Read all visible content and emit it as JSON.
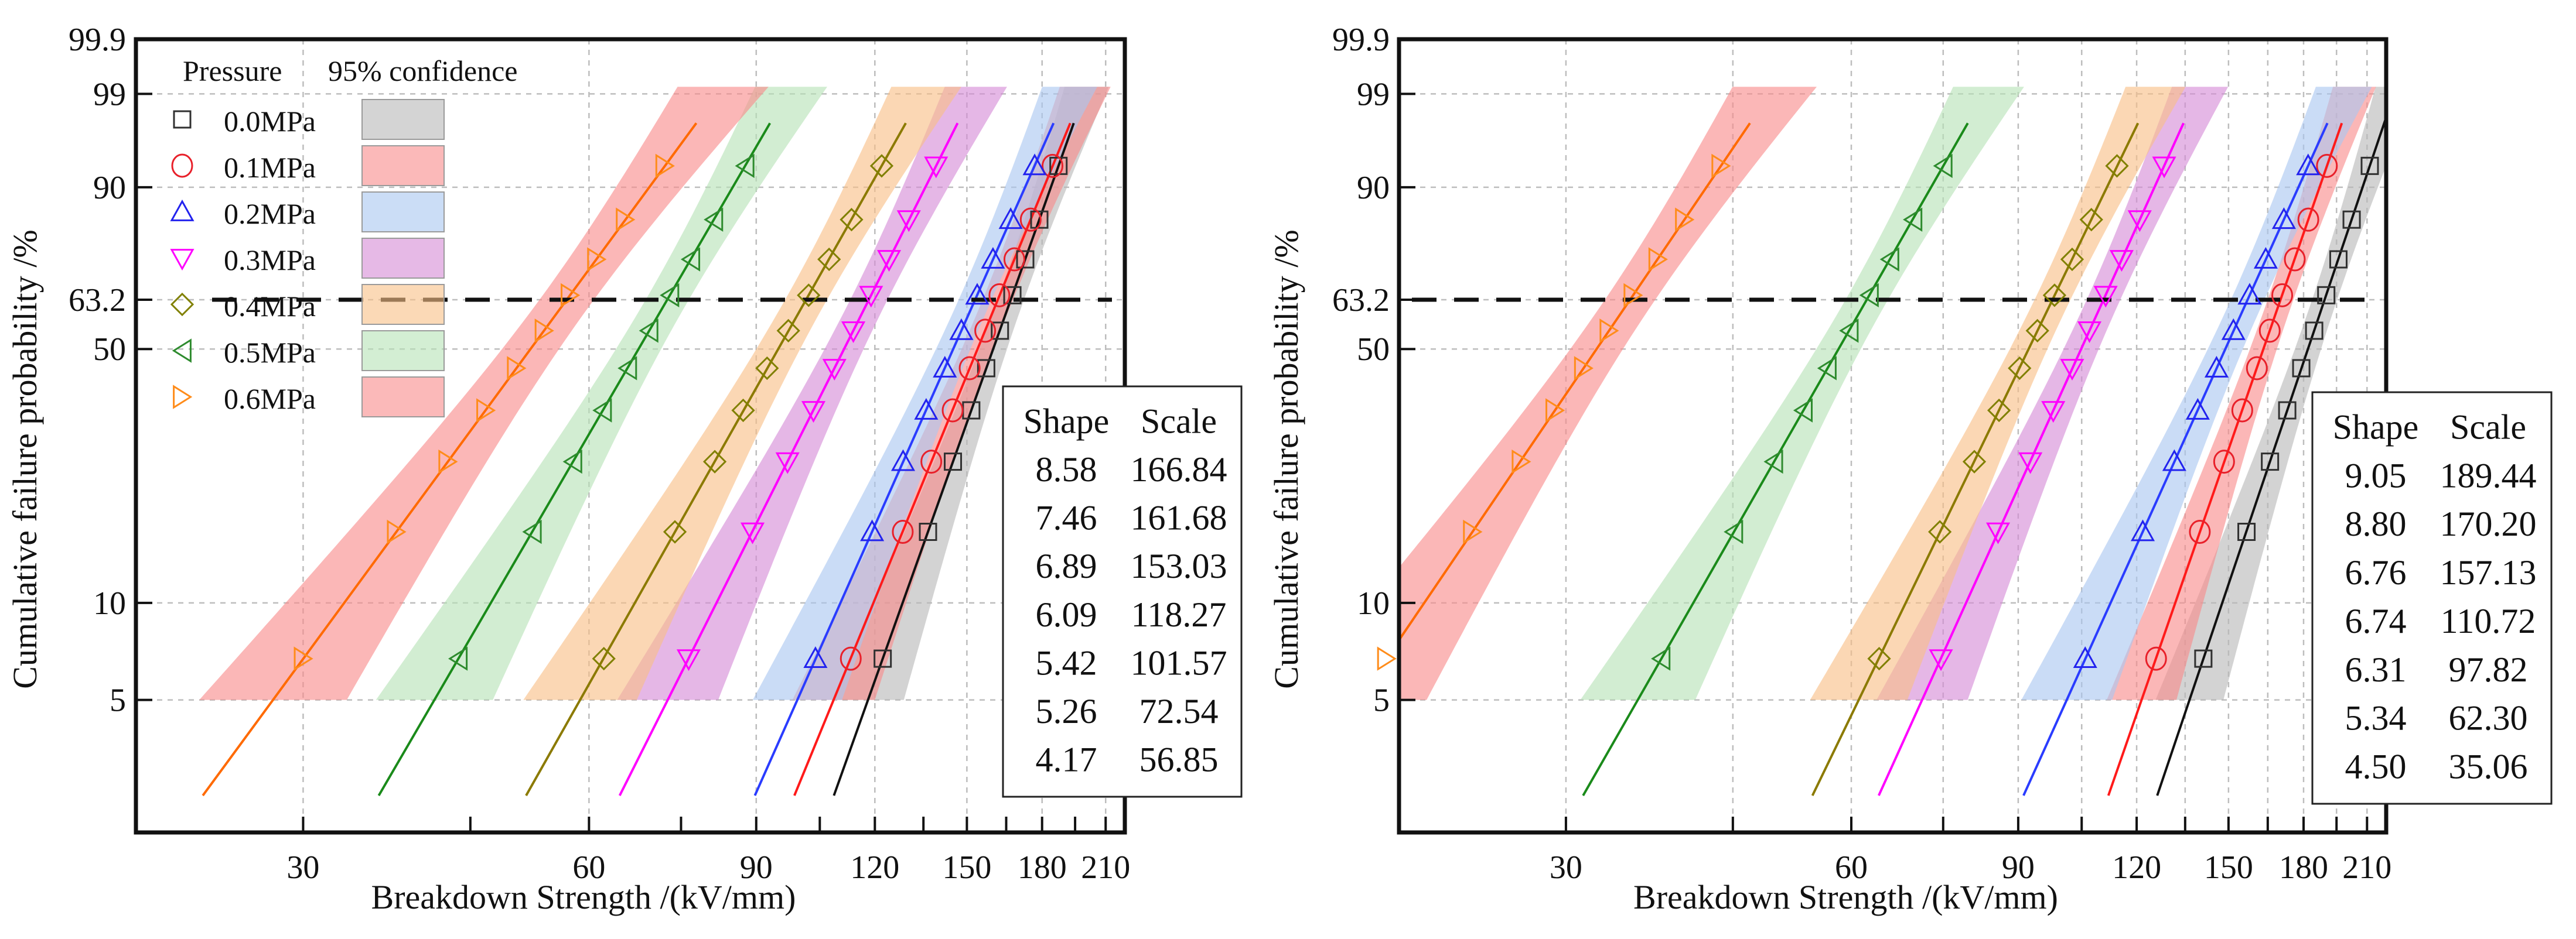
{
  "chart_data": [
    {
      "type": "scatter",
      "title": "",
      "xlabel": "Breakdown Strength /(kV/mm)",
      "ylabel": "Cumulative failure probability /%",
      "xscale": "log",
      "xlim": [
        20,
        220
      ],
      "yscale": "weibull",
      "ylim": [
        1.9,
        99.9
      ],
      "grid": true,
      "xticks": [
        "30",
        "60",
        "90",
        "120",
        "150",
        "180",
        "210"
      ],
      "xtick_values": [
        30,
        60,
        90,
        120,
        150,
        180,
        210
      ],
      "xminor_values": [
        45,
        75,
        105,
        135,
        165,
        195
      ],
      "yticks": [
        "99.9",
        "99",
        "90",
        "63.2",
        "50",
        "10",
        "5"
      ],
      "ytick_values": [
        99.9,
        99,
        90,
        63.2,
        50,
        10,
        5
      ],
      "reference_line": {
        "y": 63.2,
        "style": "dashed"
      },
      "legend": {
        "placement": "top-left",
        "title_pressure": "Pressure",
        "title_confidence": "95% confidence"
      },
      "table": {
        "headers": [
          "Shape",
          "Scale"
        ],
        "rows": [
          [
            "8.58",
            "166.84"
          ],
          [
            "7.46",
            "161.68"
          ],
          [
            "6.89",
            "153.03"
          ],
          [
            "6.09",
            "118.27"
          ],
          [
            "5.42",
            "101.57"
          ],
          [
            "5.26",
            "72.54"
          ],
          [
            "4.17",
            "56.85"
          ]
        ]
      },
      "series": [
        {
          "name": "0.0MPa",
          "marker": "square",
          "marker_color": "#303030",
          "line_color": "#111111",
          "band_color": "#b8b8b8",
          "shape": 8.58,
          "scale": 166.84,
          "x": [
            122.3,
            136.5,
            145.0,
            151.6,
            157.2,
            162.5,
            167.5,
            172.8,
            178.8,
            187.3
          ],
          "y": [
            6.73,
            16.35,
            25.96,
            35.58,
            45.19,
            54.81,
            64.42,
            74.04,
            83.65,
            93.27
          ]
        },
        {
          "name": "0.1MPa",
          "marker": "circle",
          "marker_color": "#e8202a",
          "line_color": "#ff1a1a",
          "band_color": "#f98b8b",
          "shape": 7.46,
          "scale": 161.68,
          "x": [
            113.2,
            128.4,
            137.6,
            144.9,
            151.0,
            156.8,
            162.3,
            168.3,
            175.1,
            184.6
          ],
          "y": [
            6.73,
            16.35,
            25.96,
            35.58,
            45.19,
            54.81,
            64.42,
            74.04,
            83.65,
            93.27
          ]
        },
        {
          "name": "0.2MPa",
          "marker": "triangle-up",
          "marker_color": "#2222ee",
          "line_color": "#2a3cff",
          "band_color": "#a9c6f0",
          "shape": 6.89,
          "scale": 153.03,
          "x": [
            103.9,
            119.2,
            128.5,
            135.9,
            142.2,
            148.0,
            153.8,
            159.8,
            166.8,
            176.8
          ],
          "y": [
            6.73,
            16.35,
            25.96,
            35.58,
            45.19,
            54.81,
            64.42,
            74.04,
            83.65,
            93.27
          ]
        },
        {
          "name": "0.3MPa",
          "marker": "triangle-down",
          "marker_color": "#ff00ff",
          "line_color": "#ff00ff",
          "band_color": "#d58ad6",
          "shape": 6.09,
          "scale": 118.27,
          "x": [
            76.4,
            89.2,
            97.1,
            103.4,
            108.8,
            113.9,
            118.9,
            124.2,
            130.3,
            139.2
          ],
          "y": [
            6.73,
            16.35,
            25.96,
            35.58,
            45.19,
            54.81,
            64.42,
            74.04,
            83.65,
            93.27
          ]
        },
        {
          "name": "0.4MPa",
          "marker": "diamond",
          "marker_color": "#808000",
          "line_color": "#8b7a00",
          "band_color": "#f9bf86",
          "shape": 5.42,
          "scale": 101.57,
          "x": [
            62.2,
            73.9,
            81.4,
            87.2,
            92.4,
            97.3,
            102.2,
            107.4,
            113.4,
            122.0
          ],
          "y": [
            6.73,
            16.35,
            25.96,
            35.58,
            45.19,
            54.81,
            64.42,
            74.04,
            83.65,
            93.27
          ]
        },
        {
          "name": "0.5MPa",
          "marker": "triangle-left",
          "marker_color": "#2e8b2e",
          "line_color": "#1a8a1a",
          "band_color": "#b6e2b6",
          "shape": 5.26,
          "scale": 72.54,
          "x": [
            43.7,
            52.3,
            57.7,
            62.0,
            65.9,
            69.4,
            73.0,
            76.8,
            81.2,
            87.6
          ],
          "y": [
            6.73,
            16.35,
            25.96,
            35.58,
            45.19,
            54.81,
            64.42,
            74.04,
            83.65,
            93.27
          ]
        },
        {
          "name": "0.6MPa",
          "marker": "triangle-right",
          "marker_color": "#ff8c1a",
          "line_color": "#ff6a00",
          "band_color": "#f98b8b",
          "shape": 4.17,
          "scale": 56.85,
          "x": [
            30.0,
            37.6,
            42.6,
            46.7,
            50.3,
            53.8,
            57.3,
            61.1,
            65.5,
            72.1
          ],
          "y": [
            6.73,
            16.35,
            25.96,
            35.58,
            45.19,
            54.81,
            64.42,
            74.04,
            83.65,
            93.27
          ]
        }
      ]
    },
    {
      "type": "scatter",
      "title": "",
      "xlabel": "Breakdown Strength /(kV/mm)",
      "ylabel": "Cumulative failure probability /%",
      "xscale": "log",
      "xlim": [
        20,
        220
      ],
      "yscale": "weibull",
      "ylim": [
        1.9,
        99.9
      ],
      "grid": true,
      "xticks": [
        "30",
        "60",
        "90",
        "120",
        "150",
        "180",
        "210"
      ],
      "xtick_values": [
        30,
        60,
        90,
        120,
        150,
        180,
        210
      ],
      "xminor_values": [
        45,
        75,
        105,
        135,
        165,
        195
      ],
      "yticks": [
        "99.9",
        "99",
        "90",
        "63.2",
        "50",
        "10",
        "5"
      ],
      "ytick_values": [
        99.9,
        99,
        90,
        63.2,
        50,
        10,
        5
      ],
      "reference_line": {
        "y": 63.2,
        "style": "dashed"
      },
      "table": {
        "headers": [
          "Shape",
          "Scale"
        ],
        "rows": [
          [
            "9.05",
            "189.44"
          ],
          [
            "8.80",
            "170.20"
          ],
          [
            "6.76",
            "157.13"
          ],
          [
            "6.74",
            "110.72"
          ],
          [
            "6.31",
            "97.82"
          ],
          [
            "5.34",
            "62.30"
          ],
          [
            "4.50",
            "35.06"
          ]
        ]
      },
      "series": [
        {
          "pressure_MPa": 0.0,
          "marker": "square",
          "marker_color": "#303030",
          "line_color": "#111111",
          "band_color": "#b8b8b8",
          "shape": 9.05,
          "scale": 189.44,
          "x": [
            141.1,
            156.7,
            165.9,
            173.0,
            179.0,
            184.7,
            190.2,
            195.9,
            202.3,
            211.4
          ],
          "y": [
            6.73,
            16.35,
            25.96,
            35.58,
            45.19,
            54.81,
            64.42,
            74.04,
            83.65,
            93.27
          ]
        },
        {
          "pressure_MPa": 0.1,
          "marker": "circle",
          "marker_color": "#e8202a",
          "line_color": "#ff1a1a",
          "band_color": "#f98b8b",
          "shape": 8.8,
          "scale": 170.2,
          "x": [
            125.8,
            139.9,
            148.4,
            155.1,
            160.7,
            165.8,
            170.9,
            176.2,
            182.1,
            190.5
          ],
          "y": [
            6.73,
            16.35,
            25.96,
            35.58,
            45.19,
            54.81,
            64.42,
            74.04,
            83.65,
            93.27
          ]
        },
        {
          "pressure_MPa": 0.2,
          "marker": "triangle-up",
          "marker_color": "#2222ee",
          "line_color": "#2a3cff",
          "band_color": "#a9c6f0",
          "shape": 6.76,
          "scale": 157.13,
          "x": [
            105.9,
            121.8,
            131.5,
            139.2,
            145.7,
            151.8,
            157.9,
            164.2,
            171.6,
            182.0
          ],
          "y": [
            6.73,
            16.35,
            25.96,
            35.58,
            45.19,
            54.81,
            64.42,
            74.04,
            83.65,
            93.27
          ]
        },
        {
          "pressure_MPa": 0.3,
          "marker": "triangle-down",
          "marker_color": "#ff00ff",
          "line_color": "#ff00ff",
          "band_color": "#d58ad6",
          "shape": 6.74,
          "scale": 110.72,
          "x": [
            74.6,
            85.7,
            92.7,
            98.0,
            102.6,
            107.0,
            111.3,
            115.7,
            120.9,
            128.3
          ],
          "y": [
            6.73,
            16.35,
            25.96,
            35.58,
            45.19,
            54.81,
            64.42,
            74.04,
            83.65,
            93.27
          ]
        },
        {
          "pressure_MPa": 0.4,
          "marker": "diamond",
          "marker_color": "#808000",
          "line_color": "#8b7a00",
          "band_color": "#f9bf86",
          "shape": 6.31,
          "scale": 97.82,
          "x": [
            64.2,
            74.4,
            80.9,
            85.9,
            90.3,
            94.3,
            98.3,
            102.6,
            107.5,
            114.4
          ],
          "y": [
            6.73,
            16.35,
            25.96,
            35.58,
            45.19,
            54.81,
            64.42,
            74.04,
            83.65,
            93.27
          ]
        },
        {
          "pressure_MPa": 0.5,
          "marker": "triangle-left",
          "marker_color": "#2e8b2e",
          "line_color": "#1a8a1a",
          "band_color": "#b6e2b6",
          "shape": 5.34,
          "scale": 62.3,
          "x": [
            37.8,
            45.1,
            49.7,
            53.4,
            56.6,
            59.7,
            62.7,
            65.9,
            69.7,
            75.0
          ],
          "y": [
            6.73,
            16.35,
            25.96,
            35.58,
            45.19,
            54.81,
            64.42,
            74.04,
            83.65,
            93.27
          ]
        },
        {
          "pressure_MPa": 0.6,
          "marker": "triangle-right",
          "marker_color": "#ff8c1a",
          "line_color": "#ff6a00",
          "band_color": "#f98b8b",
          "shape": 4.5,
          "scale": 35.06,
          "x": [
            19.4,
            23.9,
            26.9,
            29.2,
            31.3,
            33.3,
            35.3,
            37.5,
            40.0,
            43.7
          ],
          "y": [
            6.73,
            16.35,
            25.96,
            35.58,
            45.19,
            54.81,
            64.42,
            74.04,
            83.65,
            93.27
          ]
        }
      ]
    }
  ]
}
